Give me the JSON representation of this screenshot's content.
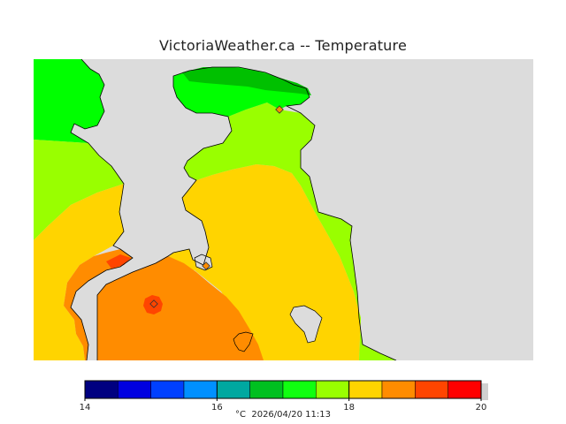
{
  "title": "VictoriaWeather.ca -- Temperature",
  "map": {
    "land_colors": {
      "green": "#00ff00",
      "light_green": "#99ff00",
      "yellow": "#ffd400",
      "orange": "#ff8c00",
      "red_orange": "#ff4500",
      "dark_green": "#00c000"
    },
    "water_color": "#dcdcdc",
    "station_markers": 3
  },
  "legend": {
    "unit": "°C",
    "timestamp": "2026/04/20 11:13",
    "min": 14,
    "max": 20,
    "tick_labels": [
      "14",
      "16",
      "18",
      "20"
    ],
    "bins": [
      {
        "from": 14.0,
        "to": 14.5,
        "color": "#000080"
      },
      {
        "from": 14.5,
        "to": 15.0,
        "color": "#0000e0"
      },
      {
        "from": 15.0,
        "to": 15.5,
        "color": "#0040ff"
      },
      {
        "from": 15.5,
        "to": 16.0,
        "color": "#0090ff"
      },
      {
        "from": 16.0,
        "to": 16.5,
        "color": "#00a8a0"
      },
      {
        "from": 16.5,
        "to": 17.0,
        "color": "#00c020"
      },
      {
        "from": 17.0,
        "to": 17.5,
        "color": "#10ff10"
      },
      {
        "from": 17.5,
        "to": 18.0,
        "color": "#99ff00"
      },
      {
        "from": 18.0,
        "to": 18.5,
        "color": "#ffd400"
      },
      {
        "from": 18.5,
        "to": 19.0,
        "color": "#ff8c00"
      },
      {
        "from": 19.0,
        "to": 19.5,
        "color": "#ff4500"
      },
      {
        "from": 19.5,
        "to": 20.0,
        "color": "#ff0000"
      }
    ]
  }
}
